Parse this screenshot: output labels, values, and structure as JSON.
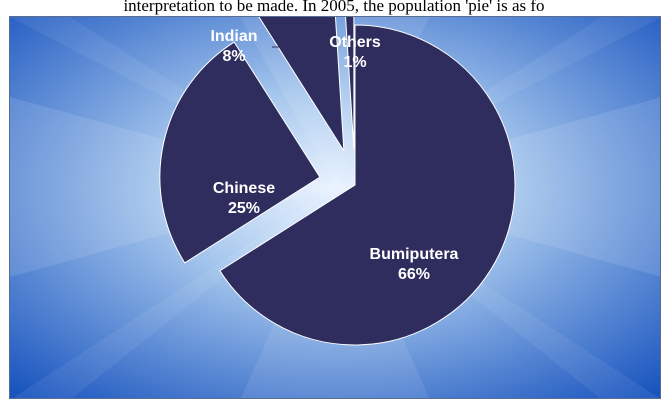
{
  "caption": "interpretation to be made. In 2005, the population 'pie' is as fo",
  "chart_data": {
    "type": "pie",
    "title": "",
    "slices": [
      {
        "label": "Bumiputera",
        "value": 66,
        "pct_label": "66%",
        "exploded": false
      },
      {
        "label": "Chinese",
        "value": 25,
        "pct_label": "25%",
        "exploded": true
      },
      {
        "label": "Indian",
        "value": 8,
        "pct_label": "8%",
        "exploded": true
      },
      {
        "label": "Others",
        "value": 1,
        "pct_label": "1%",
        "exploded": true
      }
    ],
    "colors": {
      "slice_fill": "#2e2d5e",
      "slice_stroke": "#ffffff",
      "label_inside": "#ffffff",
      "background_center": "#eaf3ff",
      "background_edge": "#1a55bf"
    },
    "legend": "none"
  }
}
